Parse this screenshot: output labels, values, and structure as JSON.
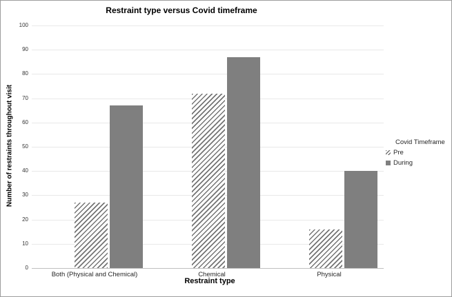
{
  "chart_data": {
    "type": "bar",
    "title": "Restraint type versus Covid timeframe",
    "xlabel": "Restraint type",
    "ylabel": "Number of restraints throughout visit",
    "categories": [
      "Both (Physical and Chemical)",
      "Chemical",
      "Physical"
    ],
    "series": [
      {
        "name": "Pre",
        "style": "hatched",
        "values": [
          27,
          72,
          16
        ]
      },
      {
        "name": "During",
        "style": "solid",
        "values": [
          67,
          87,
          40
        ]
      }
    ],
    "ylim": [
      0,
      100
    ],
    "yticks": [
      0,
      10,
      20,
      30,
      40,
      50,
      60,
      70,
      80,
      90,
      100
    ],
    "grid": true,
    "legend": {
      "title": "Covid Timeframe",
      "position": "right",
      "entries": [
        "Pre",
        "During"
      ]
    },
    "colors": {
      "solid_fill": "#7f7f7f",
      "hatch_stroke": "#737373",
      "hatch_background": "#ffffff",
      "gridline": "#e8e8e8",
      "axis_line": "#bfbfbf",
      "text": "#262626"
    }
  }
}
